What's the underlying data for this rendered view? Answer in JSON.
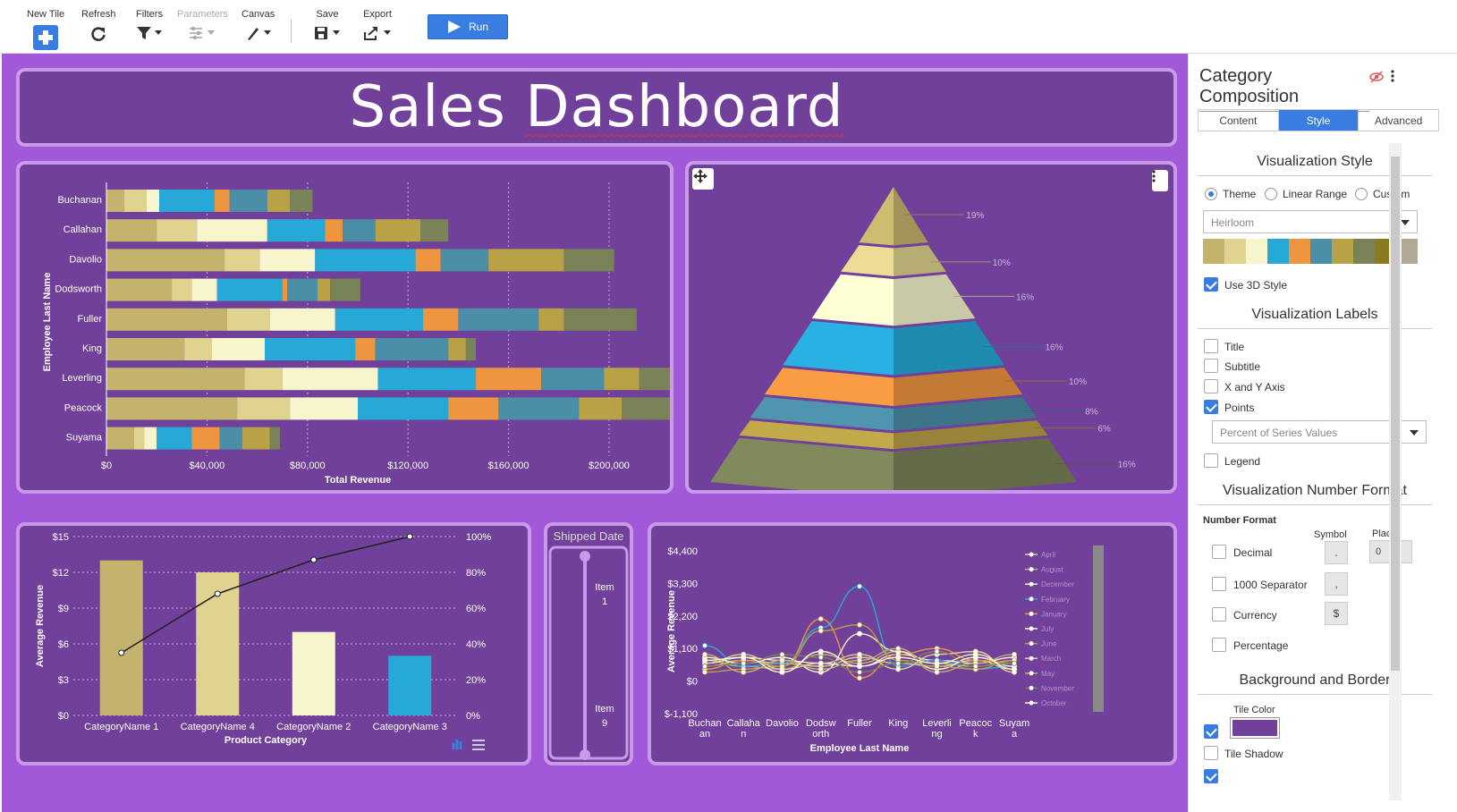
{
  "toolbar": {
    "new_tile": "New Tile",
    "refresh": "Refresh",
    "filters": "Filters",
    "parameters": "Parameters",
    "canvas": "Canvas",
    "save": "Save",
    "export": "Export",
    "run": "Run"
  },
  "dashboard": {
    "title_part1": "Sales",
    "title_part2": "Dashboard"
  },
  "colors": {
    "canvas_bg": "#a259d9",
    "tile_bg": "#71409a",
    "tile_border": "#c99ae9",
    "accent": "#3a7de0",
    "palette": [
      "#c4b36d",
      "#e0d28f",
      "#f6f5cc",
      "#27a9d8",
      "#ee9540",
      "#4b8ea8",
      "#b9a146",
      "#7a8358",
      "#8c7a1e",
      "#b3a893"
    ]
  },
  "chart_data": [
    {
      "type": "bar",
      "orientation": "horizontal-stacked",
      "categories": [
        "Buchanan",
        "Callahan",
        "Davolio",
        "Dodsworth",
        "Fuller",
        "King",
        "Leverling",
        "Peacock",
        "Suyama"
      ],
      "segments": [
        [
          7000,
          9000,
          5000,
          22000,
          6000,
          15000,
          9000,
          9000
        ],
        [
          20000,
          16000,
          28000,
          23000,
          7000,
          13000,
          18000,
          11000
        ],
        [
          47000,
          14000,
          22000,
          40000,
          10000,
          19000,
          30000,
          20000
        ],
        [
          26000,
          8000,
          10000,
          26000,
          2000,
          12000,
          5000,
          12000
        ],
        [
          48000,
          17000,
          26000,
          35000,
          14000,
          32000,
          10000,
          29000
        ],
        [
          31000,
          11000,
          21000,
          36000,
          8000,
          29000,
          7000,
          4000
        ],
        [
          55000,
          15000,
          38000,
          39000,
          26000,
          25000,
          14000,
          41000
        ],
        [
          52000,
          21000,
          27000,
          36000,
          20000,
          32000,
          17000,
          31000
        ],
        [
          11000,
          4000,
          5000,
          14000,
          11000,
          9000,
          11000,
          4000
        ]
      ],
      "xlabel": "Total Revenue",
      "ylabel": "Employee Last Name",
      "xticks": [
        "$0",
        "$40,000",
        "$80,000",
        "$120,000",
        "$160,000",
        "$200,000"
      ],
      "xlim": [
        0,
        200000
      ]
    },
    {
      "type": "pyramid",
      "labels": [
        "19%",
        "10%",
        "16%",
        "16%",
        "10%",
        "8%",
        "6%",
        "16%"
      ],
      "values": [
        19,
        10,
        16,
        16,
        10,
        8,
        6,
        16
      ]
    },
    {
      "type": "bar",
      "subtype": "bar+line-pareto",
      "categories": [
        "CategoryName 1",
        "CategoryName 4",
        "CategoryName 2",
        "CategoryName 3"
      ],
      "values": [
        13,
        12,
        7,
        5
      ],
      "line_values_pct": [
        35,
        68,
        87,
        100
      ],
      "xlabel": "Product Category",
      "ylabel": "Average Revenue",
      "yticks": [
        "$0",
        "$3",
        "$6",
        "$9",
        "$12",
        "$15"
      ],
      "ylim": [
        0,
        15
      ],
      "y2ticks": [
        "0%",
        "20%",
        "40%",
        "60%",
        "80%",
        "100%"
      ]
    },
    {
      "type": "line",
      "categories": [
        "Buchanan",
        "Callahan",
        "Davolio",
        "Dodsworth",
        "Fuller",
        "King",
        "Leverling",
        "Peacock",
        "Suyama"
      ],
      "category_lines": [
        [
          "Buchan",
          "an"
        ],
        [
          "Callaha",
          "n"
        ],
        [
          "Davolio",
          ""
        ],
        [
          "Dodsw",
          "orth"
        ],
        [
          "Fuller",
          ""
        ],
        [
          "King",
          ""
        ],
        [
          "Leverli",
          "ng"
        ],
        [
          "Peacoc",
          "k"
        ],
        [
          "Suyam",
          "a"
        ]
      ],
      "series": [
        {
          "name": "April",
          "values": [
            500,
            700,
            600,
            500,
            800,
            600,
            500,
            700,
            400
          ]
        },
        {
          "name": "August",
          "values": [
            700,
            500,
            400,
            900,
            600,
            1000,
            600,
            500,
            700
          ]
        },
        {
          "name": "December",
          "values": [
            600,
            800,
            700,
            600,
            500,
            900,
            700,
            600,
            800
          ]
        },
        {
          "name": "February",
          "values": [
            1200,
            500,
            600,
            1800,
            3200,
            500,
            700,
            400,
            500
          ]
        },
        {
          "name": "January",
          "values": [
            400,
            700,
            500,
            2100,
            100,
            900,
            1100,
            700,
            600
          ]
        },
        {
          "name": "July",
          "values": [
            800,
            600,
            800,
            300,
            1600,
            1000,
            400,
            800,
            500
          ]
        },
        {
          "name": "June",
          "values": [
            300,
            400,
            500,
            1700,
            1900,
            700,
            500,
            400,
            700
          ]
        },
        {
          "name": "March",
          "values": [
            600,
            900,
            400,
            600,
            900,
            400,
            900,
            1000,
            300
          ]
        },
        {
          "name": "May",
          "values": [
            900,
            300,
            700,
            400,
            700,
            1100,
            300,
            600,
            900
          ]
        },
        {
          "name": "November",
          "values": [
            500,
            600,
            900,
            800,
            300,
            600,
            1000,
            500,
            600
          ]
        },
        {
          "name": "October",
          "values": [
            700,
            800,
            300,
            1000,
            500,
            800,
            600,
            900,
            400
          ]
        }
      ],
      "xlabel": "Employee Last Name",
      "ylabel": "Average Revenue",
      "yticks": [
        "$-1,100",
        "$0",
        "$1,100",
        "$2,200",
        "$3,300",
        "$4,400"
      ],
      "ylim": [
        -1100,
        4400
      ]
    }
  ],
  "slider": {
    "title": "Shipped Date",
    "top_label": [
      "Item",
      "1"
    ],
    "bottom_label": [
      "Item",
      "9"
    ]
  },
  "panel": {
    "title": "Category Composition",
    "tabs": [
      "Content",
      "Style",
      "Advanced"
    ],
    "viz_style": "Visualization Style",
    "radios": [
      "Theme",
      "Linear Range",
      "Custom"
    ],
    "theme_select": "Heirloom",
    "use_3d": "Use 3D Style",
    "viz_labels": "Visualization Labels",
    "label_options": [
      "Title",
      "Subtitle",
      "X and Y Axis",
      "Points"
    ],
    "points_select": "Percent of Series Values",
    "legend": "Legend",
    "num_format_title": "Visualization Number Format",
    "number_format": "Number Format",
    "symbol": "Symbol",
    "places": "Places",
    "places_value": "0",
    "format_options": [
      "Decimal",
      "1000 Separator",
      "Currency",
      "Percentage"
    ],
    "symbol_values": [
      ".",
      ",",
      "$"
    ],
    "bg_border": "Background and Border",
    "tile_color": "Tile Color",
    "tile_shadow": "Tile Shadow"
  }
}
